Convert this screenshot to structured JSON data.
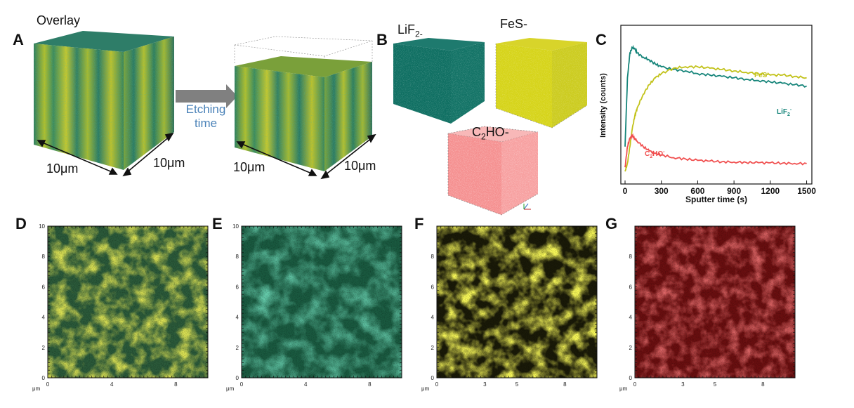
{
  "panels": {
    "A": {
      "letter": "A",
      "overlay_label": "Overlay",
      "arrow_label_line1": "Etching",
      "arrow_label_line2": "time",
      "dim_label": "10μm"
    },
    "B": {
      "letter": "B",
      "lif2_label": "LiF",
      "lif2_sub": "2-",
      "fes_label": "FeS-",
      "c2ho_prefix": "C",
      "c2ho_sub": "2",
      "c2ho_suffix": "HO-"
    },
    "C": {
      "letter": "C"
    },
    "D": {
      "letter": "D"
    },
    "E": {
      "letter": "E"
    },
    "F": {
      "letter": "F"
    },
    "G": {
      "letter": "G"
    }
  },
  "colors": {
    "lif2": "#16857a",
    "fes": "#c2c21a",
    "c2ho": "#f05050",
    "arrow": "#808080",
    "etching_text": "#4a82b8"
  },
  "maps": {
    "unit": "μm",
    "D": {
      "ticks_y": [
        "0",
        "2",
        "4",
        "6",
        "8",
        "10"
      ],
      "ticks_x": [
        "0",
        "4",
        "8"
      ]
    },
    "E": {
      "ticks_y": [
        "0",
        "2",
        "4",
        "6",
        "8",
        "10"
      ],
      "ticks_x": [
        "0",
        "4",
        "8"
      ]
    },
    "F": {
      "ticks_y": [
        "0",
        "2",
        "4",
        "6",
        "8"
      ],
      "ticks_x": [
        "0",
        "3",
        "5",
        "8"
      ]
    },
    "G": {
      "ticks_y": [
        "0",
        "2",
        "4",
        "6",
        "8"
      ],
      "ticks_x": [
        "0",
        "3",
        "5",
        "8"
      ]
    }
  },
  "chart_data": {
    "type": "line",
    "xlabel": "Sputter time (s)",
    "ylabel": "Intensity (counts)",
    "xlim": [
      0,
      1520
    ],
    "xticks": [
      0,
      300,
      600,
      900,
      1200,
      1500
    ],
    "x": [
      0,
      20,
      40,
      60,
      80,
      100,
      150,
      200,
      250,
      300,
      400,
      500,
      600,
      700,
      800,
      900,
      1000,
      1100,
      1200,
      1300,
      1400,
      1500
    ],
    "series": [
      {
        "name": "LiF2-",
        "label_main": "LiF",
        "label_sub": "2",
        "label_sup": "-",
        "color": "#16857a",
        "values": [
          0.2,
          0.7,
          0.88,
          0.92,
          0.91,
          0.88,
          0.85,
          0.83,
          0.8,
          0.78,
          0.76,
          0.75,
          0.73,
          0.72,
          0.71,
          0.7,
          0.69,
          0.68,
          0.67,
          0.66,
          0.65,
          0.64
        ]
      },
      {
        "name": "FeS-",
        "label_main": "FeS",
        "label_sup": "-",
        "color": "#c2c21a",
        "values": [
          0.02,
          0.08,
          0.2,
          0.33,
          0.42,
          0.48,
          0.58,
          0.65,
          0.7,
          0.73,
          0.77,
          0.78,
          0.78,
          0.77,
          0.76,
          0.75,
          0.74,
          0.73,
          0.72,
          0.72,
          0.71,
          0.7
        ]
      },
      {
        "name": "C2HO-",
        "label_main": "C",
        "label_sub": "2",
        "label_main2": "HO",
        "label_sup": "-",
        "color": "#f05050",
        "values": [
          0.05,
          0.2,
          0.26,
          0.28,
          0.26,
          0.24,
          0.2,
          0.17,
          0.15,
          0.14,
          0.12,
          0.11,
          0.1,
          0.095,
          0.09,
          0.088,
          0.085,
          0.083,
          0.082,
          0.08,
          0.078,
          0.077
        ]
      }
    ]
  }
}
